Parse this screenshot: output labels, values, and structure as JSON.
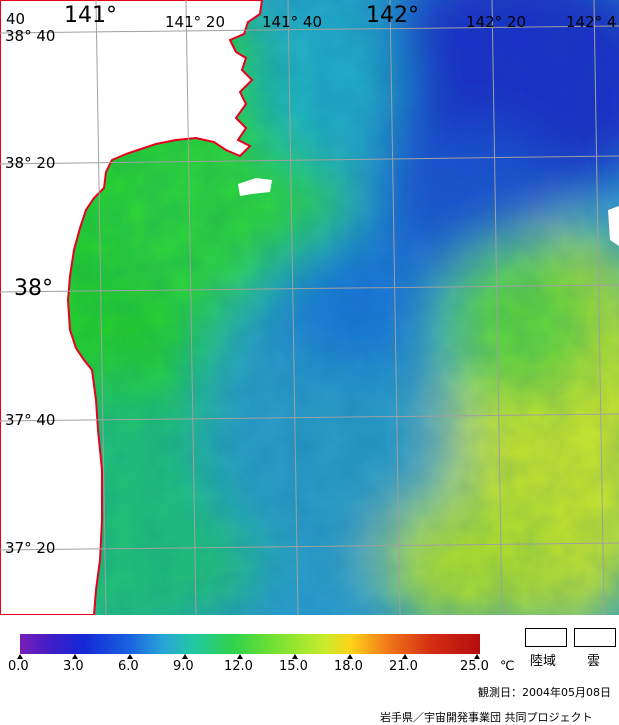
{
  "map": {
    "lat_labels": [
      {
        "deg": "38",
        "min": "40",
        "sep": "°"
      },
      {
        "deg": "38",
        "min": "20",
        "sep": "°"
      },
      {
        "deg": "38",
        "min": "",
        "sep": "°"
      },
      {
        "deg": "37",
        "min": "40",
        "sep": "°"
      },
      {
        "deg": "37",
        "min": "20",
        "sep": "°"
      }
    ],
    "lon_labels": [
      {
        "text": "141°"
      },
      {
        "text": "141° 20"
      },
      {
        "text": "141° 40"
      },
      {
        "text": "142°"
      },
      {
        "text": "142° 20"
      },
      {
        "text": "142° 4"
      }
    ],
    "corner_label": "40",
    "colors": {
      "land": "#ffffff",
      "coast": "#e8001c",
      "grid": "#a0a0a0",
      "warm": "#d8f020",
      "coast_sea": "#22d21e",
      "mid_sea": "#2ba0c8",
      "cold": "#1828c8"
    }
  },
  "scale": {
    "ticks": [
      "0.0",
      "3.0",
      "6.0",
      "9.0",
      "12.0",
      "15.0",
      "18.0",
      "21.0",
      "25.0"
    ],
    "unit": "℃"
  },
  "legend": {
    "land": "陸域",
    "cloud": "雲"
  },
  "observation_date": "観測日：2004年05月08日",
  "credit": "岩手県／宇宙開発事業団 共同プロジェクト"
}
